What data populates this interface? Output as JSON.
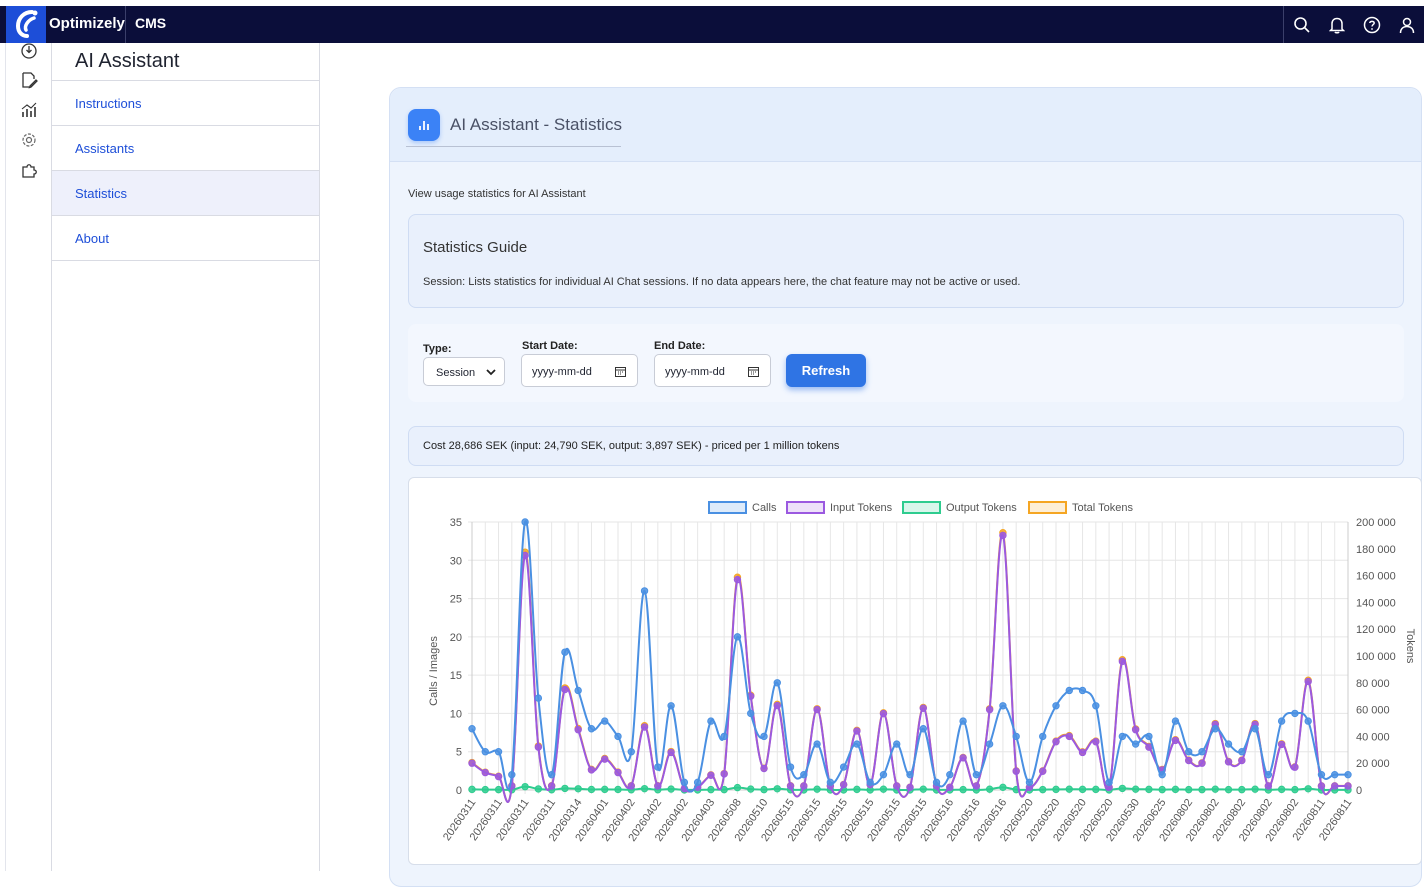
{
  "topbar": {
    "brand": "Optimizely",
    "product": "CMS",
    "icons": [
      "search-icon",
      "bell-icon",
      "help-icon",
      "user-icon"
    ]
  },
  "rail": {
    "icons": [
      "dashboard-icon",
      "edit-icon",
      "reports-icon",
      "settings-icon",
      "addons-icon"
    ]
  },
  "sidenav": {
    "title": "AI Assistant",
    "items": [
      {
        "label": "Instructions",
        "active": false
      },
      {
        "label": "Assistants",
        "active": false
      },
      {
        "label": "Statistics",
        "active": true
      },
      {
        "label": "About",
        "active": false
      }
    ]
  },
  "panel": {
    "title": "AI Assistant - Statistics",
    "description": "View usage statistics for AI Assistant",
    "guide_title": "Statistics Guide",
    "guide_text": "Session: Lists statistics for individual AI Chat sessions. If no data appears here, the chat feature may not be active or used."
  },
  "filters": {
    "type_label": "Type:",
    "type_value": "Session",
    "start_label": "Start Date:",
    "start_placeholder": "yyyy-mm-dd",
    "end_label": "End Date:",
    "end_placeholder": "yyyy-mm-dd",
    "refresh_label": "Refresh"
  },
  "cost_text": "Cost 28,686 SEK (input: 24,790 SEK, output: 3,897 SEK) - priced per 1 million tokens",
  "colors": {
    "calls": "#4a90e2",
    "input": "#9b59e0",
    "output": "#2ecc8f",
    "total": "#f5a623",
    "accent": "#2f74e4",
    "topbar": "#0b0e3a"
  },
  "chart_data": {
    "type": "line",
    "legend": [
      "Calls",
      "Input Tokens",
      "Output Tokens",
      "Total Tokens"
    ],
    "ylabel_left": "Calls / Images",
    "ylabel_right": "Tokens",
    "y_left_range": [
      0,
      35
    ],
    "y_left_ticks": [
      "0",
      "5",
      "10",
      "15",
      "20",
      "25",
      "30",
      "35"
    ],
    "y_right_range": [
      0,
      200000
    ],
    "y_right_ticks": [
      "0",
      "20 000",
      "40 000",
      "60 000",
      "80 000",
      "100 000",
      "120 000",
      "140 000",
      "160 000",
      "180 000",
      "200 000"
    ],
    "x_tick_labels": [
      "20260311",
      "20260311",
      "20260311",
      "20260311",
      "20260314",
      "20260401",
      "20260402",
      "20260402",
      "20260402",
      "20260403",
      "20260508",
      "20260510",
      "20260515",
      "20260515",
      "20260515",
      "20260515",
      "20260515",
      "20260515",
      "20260516",
      "20260516",
      "20260516",
      "20260520",
      "20260520",
      "20260520",
      "20260520",
      "20260530",
      "20260625",
      "20260802",
      "20260802",
      "20260802",
      "20260802",
      "20260802",
      "20260811",
      "20260811"
    ],
    "calls": [
      8,
      5,
      5,
      2,
      35,
      12,
      2,
      18,
      13,
      8,
      9,
      7,
      5,
      26,
      3,
      11,
      1,
      1,
      9,
      7,
      20,
      10,
      7,
      14,
      3,
      2,
      6,
      1,
      3,
      6,
      1,
      2,
      6,
      2,
      8,
      1,
      2,
      9,
      2,
      6,
      11,
      7,
      1,
      7,
      11,
      13,
      13,
      11,
      1,
      7,
      6,
      7,
      2,
      9,
      5,
      5,
      8,
      6,
      5,
      8,
      2,
      9,
      10,
      9,
      2,
      2,
      2
    ],
    "input_tokens": [
      20000,
      13000,
      10000,
      3000,
      175000,
      32000,
      3000,
      75000,
      45000,
      15000,
      23000,
      13000,
      3000,
      47000,
      3000,
      28000,
      1000,
      2000,
      11000,
      12000,
      157000,
      70000,
      16000,
      63000,
      3000,
      3000,
      60000,
      3000,
      4000,
      44000,
      4000,
      57000,
      3000,
      2000,
      61000,
      3000,
      2000,
      24000,
      3000,
      60000,
      190000,
      14000,
      2000,
      14000,
      36000,
      40000,
      28000,
      36000,
      2000,
      96000,
      45000,
      32000,
      15000,
      37000,
      22000,
      20000,
      49000,
      21000,
      22000,
      49000,
      3000,
      34000,
      17000,
      81000,
      3000,
      3000,
      3000
    ],
    "output_tokens": [
      500,
      300,
      300,
      200,
      2500,
      800,
      200,
      1200,
      900,
      400,
      500,
      400,
      200,
      1000,
      200,
      700,
      100,
      100,
      300,
      300,
      1800,
      700,
      300,
      900,
      200,
      100,
      600,
      100,
      100,
      500,
      100,
      600,
      100,
      100,
      600,
      100,
      100,
      300,
      100,
      600,
      2000,
      300,
      100,
      300,
      500,
      600,
      500,
      500,
      100,
      1200,
      600,
      500,
      300,
      500,
      300,
      300,
      600,
      300,
      300,
      600,
      100,
      500,
      300,
      900,
      100,
      100,
      100
    ],
    "total_tokens": [
      20500,
      13300,
      10300,
      3200,
      177500,
      32800,
      3200,
      76200,
      45900,
      15400,
      23500,
      13400,
      3200,
      48000,
      3200,
      28700,
      1100,
      2100,
      11300,
      12300,
      158800,
      70700,
      16300,
      63900,
      3200,
      3100,
      60600,
      3100,
      4100,
      44500,
      4100,
      57600,
      3100,
      2100,
      61600,
      3100,
      2100,
      24300,
      3100,
      60600,
      192000,
      14300,
      2100,
      14300,
      36500,
      40600,
      28500,
      36500,
      2100,
      97200,
      45600,
      32500,
      15300,
      37500,
      22300,
      20300,
      49600,
      21300,
      22300,
      49600,
      3100,
      34500,
      17300,
      81900,
      3100,
      3100,
      3100
    ]
  }
}
